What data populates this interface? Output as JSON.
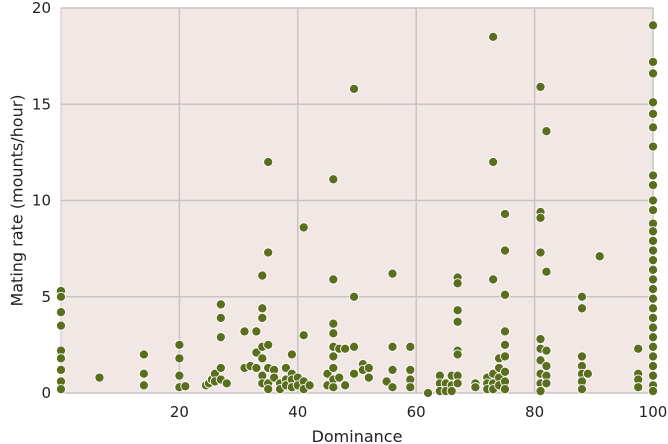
{
  "chart_data": {
    "type": "scatter",
    "title": "",
    "xlabel": "Dominance",
    "ylabel": "Mating rate (mounts/hour)",
    "xlim": [
      0,
      100
    ],
    "ylim": [
      0,
      20
    ],
    "x_ticks": [
      20,
      40,
      60,
      80,
      100
    ],
    "x_tick_labels": [
      "20",
      "40",
      "60",
      "80",
      "100"
    ],
    "y_ticks": [
      0,
      5,
      10,
      15,
      20
    ],
    "y_tick_labels": [
      "0",
      "5",
      "10",
      "15",
      "20"
    ],
    "grid": true,
    "legend": "none",
    "colors": {
      "plot_background": "#f1e8e6",
      "grid": "#c9c3c1",
      "marker_fill": "#5b6e1e",
      "marker_edge": "#ffffff"
    },
    "points": [
      [
        0,
        5.3
      ],
      [
        0,
        5.0
      ],
      [
        0,
        4.2
      ],
      [
        0,
        3.5
      ],
      [
        0,
        2.2
      ],
      [
        0,
        1.8
      ],
      [
        0,
        1.2
      ],
      [
        0,
        0.6
      ],
      [
        0,
        0.2
      ],
      [
        6.5,
        0.8
      ],
      [
        14,
        2.0
      ],
      [
        14,
        1.0
      ],
      [
        14,
        0.4
      ],
      [
        20,
        2.5
      ],
      [
        20,
        1.8
      ],
      [
        20,
        0.9
      ],
      [
        20,
        0.3
      ],
      [
        21,
        0.35
      ],
      [
        24.5,
        0.4
      ],
      [
        25,
        0.5
      ],
      [
        25.5,
        0.7
      ],
      [
        26,
        1.0
      ],
      [
        26,
        0.6
      ],
      [
        27,
        4.6
      ],
      [
        27,
        3.9
      ],
      [
        27,
        2.9
      ],
      [
        27,
        1.3
      ],
      [
        27,
        0.7
      ],
      [
        28,
        0.5
      ],
      [
        31,
        3.2
      ],
      [
        31,
        1.3
      ],
      [
        32,
        1.4
      ],
      [
        33,
        3.2
      ],
      [
        33,
        2.1
      ],
      [
        33,
        1.3
      ],
      [
        34,
        6.1
      ],
      [
        34,
        4.4
      ],
      [
        34,
        3.9
      ],
      [
        34,
        2.4
      ],
      [
        34,
        1.8
      ],
      [
        34,
        0.9
      ],
      [
        34,
        0.5
      ],
      [
        35,
        12.0
      ],
      [
        35,
        7.3
      ],
      [
        35,
        2.5
      ],
      [
        35,
        1.3
      ],
      [
        35,
        0.5
      ],
      [
        35,
        0.2
      ],
      [
        36,
        1.2
      ],
      [
        36,
        0.8
      ],
      [
        37,
        0.5
      ],
      [
        37,
        0.2
      ],
      [
        38,
        1.3
      ],
      [
        38,
        0.7
      ],
      [
        38,
        0.4
      ],
      [
        39,
        2.0
      ],
      [
        39,
        1.0
      ],
      [
        39,
        0.7
      ],
      [
        39,
        0.3
      ],
      [
        40,
        0.8
      ],
      [
        40,
        0.4
      ],
      [
        41,
        8.6
      ],
      [
        41,
        3.0
      ],
      [
        41,
        0.6
      ],
      [
        41,
        0.2
      ],
      [
        42,
        0.4
      ],
      [
        45,
        1.0
      ],
      [
        45,
        0.4
      ],
      [
        46,
        11.1
      ],
      [
        46,
        5.9
      ],
      [
        46,
        3.6
      ],
      [
        46,
        3.1
      ],
      [
        46,
        2.4
      ],
      [
        46,
        1.9
      ],
      [
        46,
        1.3
      ],
      [
        46,
        0.7
      ],
      [
        46,
        0.3
      ],
      [
        47,
        2.3
      ],
      [
        47,
        0.8
      ],
      [
        48,
        2.3
      ],
      [
        48,
        0.4
      ],
      [
        49.5,
        15.8
      ],
      [
        49.5,
        5.0
      ],
      [
        49.5,
        2.4
      ],
      [
        49.5,
        1.0
      ],
      [
        51,
        1.5
      ],
      [
        51,
        1.2
      ],
      [
        52,
        1.3
      ],
      [
        52,
        0.8
      ],
      [
        55,
        0.6
      ],
      [
        56,
        6.2
      ],
      [
        56,
        2.4
      ],
      [
        56,
        1.2
      ],
      [
        56,
        0.3
      ],
      [
        59,
        2.4
      ],
      [
        59,
        1.2
      ],
      [
        59,
        0.7
      ],
      [
        59,
        0.3
      ],
      [
        62,
        0.0
      ],
      [
        64,
        0.9
      ],
      [
        64,
        0.5
      ],
      [
        64,
        0.1
      ],
      [
        65,
        0.5
      ],
      [
        65,
        0.1
      ],
      [
        66,
        0.9
      ],
      [
        66,
        0.4
      ],
      [
        66,
        0.1
      ],
      [
        67,
        6.0
      ],
      [
        67,
        5.7
      ],
      [
        67,
        4.3
      ],
      [
        67,
        3.7
      ],
      [
        67,
        2.2
      ],
      [
        67,
        2.0
      ],
      [
        67,
        0.9
      ],
      [
        67,
        0.5
      ],
      [
        70,
        0.5
      ],
      [
        70,
        0.3
      ],
      [
        72,
        0.8
      ],
      [
        72,
        0.5
      ],
      [
        72,
        0.2
      ],
      [
        73,
        18.5
      ],
      [
        73,
        12.0
      ],
      [
        73,
        5.9
      ],
      [
        73,
        1.0
      ],
      [
        73,
        0.5
      ],
      [
        73,
        0.2
      ],
      [
        74,
        1.8
      ],
      [
        74,
        1.3
      ],
      [
        74,
        0.8
      ],
      [
        74,
        0.4
      ],
      [
        75,
        9.3
      ],
      [
        75,
        7.4
      ],
      [
        75,
        5.1
      ],
      [
        75,
        3.2
      ],
      [
        75,
        2.5
      ],
      [
        75,
        1.9
      ],
      [
        75,
        1.1
      ],
      [
        75,
        0.6
      ],
      [
        75,
        0.2
      ],
      [
        81,
        15.9
      ],
      [
        81,
        9.4
      ],
      [
        81,
        9.1
      ],
      [
        81,
        7.3
      ],
      [
        81,
        2.8
      ],
      [
        81,
        2.3
      ],
      [
        81,
        1.7
      ],
      [
        81,
        1.0
      ],
      [
        81,
        0.5
      ],
      [
        81,
        0.1
      ],
      [
        82,
        13.6
      ],
      [
        82,
        6.3
      ],
      [
        82,
        2.2
      ],
      [
        82,
        1.4
      ],
      [
        82,
        0.9
      ],
      [
        82,
        0.5
      ],
      [
        88,
        5.0
      ],
      [
        88,
        4.4
      ],
      [
        88,
        1.9
      ],
      [
        88,
        1.4
      ],
      [
        88,
        1.0
      ],
      [
        88,
        0.6
      ],
      [
        88,
        0.2
      ],
      [
        89,
        1.0
      ],
      [
        91,
        7.1
      ],
      [
        97.5,
        2.3
      ],
      [
        97.5,
        1.0
      ],
      [
        97.5,
        0.7
      ],
      [
        97.5,
        0.3
      ],
      [
        100,
        19.1
      ],
      [
        100,
        17.2
      ],
      [
        100,
        16.6
      ],
      [
        100,
        15.1
      ],
      [
        100,
        14.5
      ],
      [
        100,
        13.8
      ],
      [
        100,
        12.8
      ],
      [
        100,
        11.3
      ],
      [
        100,
        10.8
      ],
      [
        100,
        10.0
      ],
      [
        100,
        9.5
      ],
      [
        100,
        8.8
      ],
      [
        100,
        8.4
      ],
      [
        100,
        7.9
      ],
      [
        100,
        7.4
      ],
      [
        100,
        6.9
      ],
      [
        100,
        6.4
      ],
      [
        100,
        5.9
      ],
      [
        100,
        5.4
      ],
      [
        100,
        4.9
      ],
      [
        100,
        4.4
      ],
      [
        100,
        3.9
      ],
      [
        100,
        3.4
      ],
      [
        100,
        2.9
      ],
      [
        100,
        2.4
      ],
      [
        100,
        1.9
      ],
      [
        100,
        1.4
      ],
      [
        100,
        0.9
      ],
      [
        100,
        0.4
      ],
      [
        100,
        0.1
      ]
    ]
  }
}
